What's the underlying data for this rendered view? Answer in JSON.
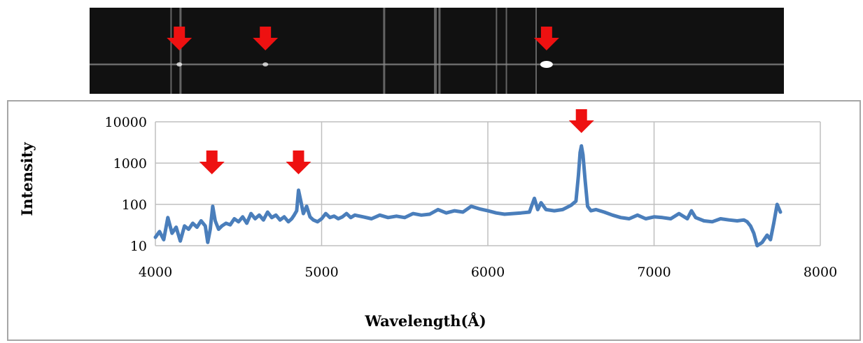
{
  "spectrum_image": {
    "background": "#111111",
    "line_color": "#ffffff",
    "marker_color": "#ee1111",
    "emission_spots": [
      4340,
      4861,
      6563
    ],
    "bright_lines": [
      4290,
      4347,
      5580,
      5890,
      5915,
      6260,
      6320,
      6500
    ]
  },
  "chart_data": {
    "type": "line",
    "title": "",
    "xlabel": "Wavelength(Å)",
    "ylabel": "Intensity",
    "xlim": [
      4000,
      8000
    ],
    "ylim": [
      10,
      10000
    ],
    "yscale": "log",
    "grid": true,
    "line_color": "#4a7ebb",
    "marker_color": "#ee1111",
    "x_ticks": [
      "4000",
      "5000",
      "6000",
      "7000",
      "8000"
    ],
    "y_ticks": [
      "10",
      "100",
      "1000",
      "10000"
    ],
    "markers": [
      4340,
      4861,
      6563
    ],
    "series": [
      {
        "x": [
          4000,
          4025,
          4050,
          4075,
          4100,
          4125,
          4150,
          4175,
          4200,
          4225,
          4250,
          4275,
          4300,
          4315,
          4330,
          4345,
          4360,
          4380,
          4400,
          4425,
          4450,
          4475,
          4500,
          4525,
          4550,
          4575,
          4600,
          4625,
          4650,
          4675,
          4700,
          4725,
          4750,
          4775,
          4800,
          4820,
          4835,
          4850,
          4861,
          4875,
          4890,
          4910,
          4930,
          4950,
          4975,
          5000,
          5025,
          5050,
          5075,
          5100,
          5125,
          5150,
          5175,
          5200,
          5250,
          5300,
          5350,
          5400,
          5450,
          5500,
          5550,
          5600,
          5650,
          5700,
          5750,
          5800,
          5850,
          5900,
          5950,
          6000,
          6050,
          6100,
          6150,
          6200,
          6250,
          6280,
          6300,
          6320,
          6350,
          6400,
          6450,
          6500,
          6530,
          6545,
          6555,
          6563,
          6572,
          6585,
          6600,
          6620,
          6650,
          6700,
          6750,
          6800,
          6850,
          6900,
          6950,
          7000,
          7050,
          7100,
          7150,
          7200,
          7225,
          7250,
          7300,
          7350,
          7400,
          7450,
          7500,
          7540,
          7560,
          7580,
          7600,
          7620,
          7650,
          7680,
          7700,
          7720,
          7740,
          7760
        ],
        "values": [
          16,
          22,
          14,
          48,
          20,
          28,
          13,
          30,
          25,
          35,
          28,
          40,
          30,
          12,
          25,
          90,
          40,
          25,
          30,
          35,
          32,
          45,
          38,
          50,
          35,
          60,
          45,
          55,
          42,
          65,
          48,
          55,
          42,
          50,
          38,
          45,
          55,
          70,
          220,
          120,
          60,
          90,
          50,
          42,
          38,
          45,
          60,
          48,
          52,
          45,
          50,
          60,
          48,
          55,
          50,
          45,
          55,
          48,
          52,
          48,
          60,
          55,
          58,
          75,
          62,
          70,
          65,
          90,
          78,
          70,
          62,
          58,
          60,
          62,
          65,
          140,
          75,
          110,
          75,
          70,
          75,
          95,
          120,
          500,
          1800,
          2600,
          1600,
          400,
          90,
          70,
          75,
          65,
          55,
          48,
          45,
          55,
          45,
          50,
          48,
          45,
          60,
          45,
          70,
          48,
          40,
          38,
          45,
          42,
          40,
          42,
          38,
          30,
          20,
          10,
          12,
          18,
          14,
          35,
          100,
          65
        ]
      }
    ]
  }
}
